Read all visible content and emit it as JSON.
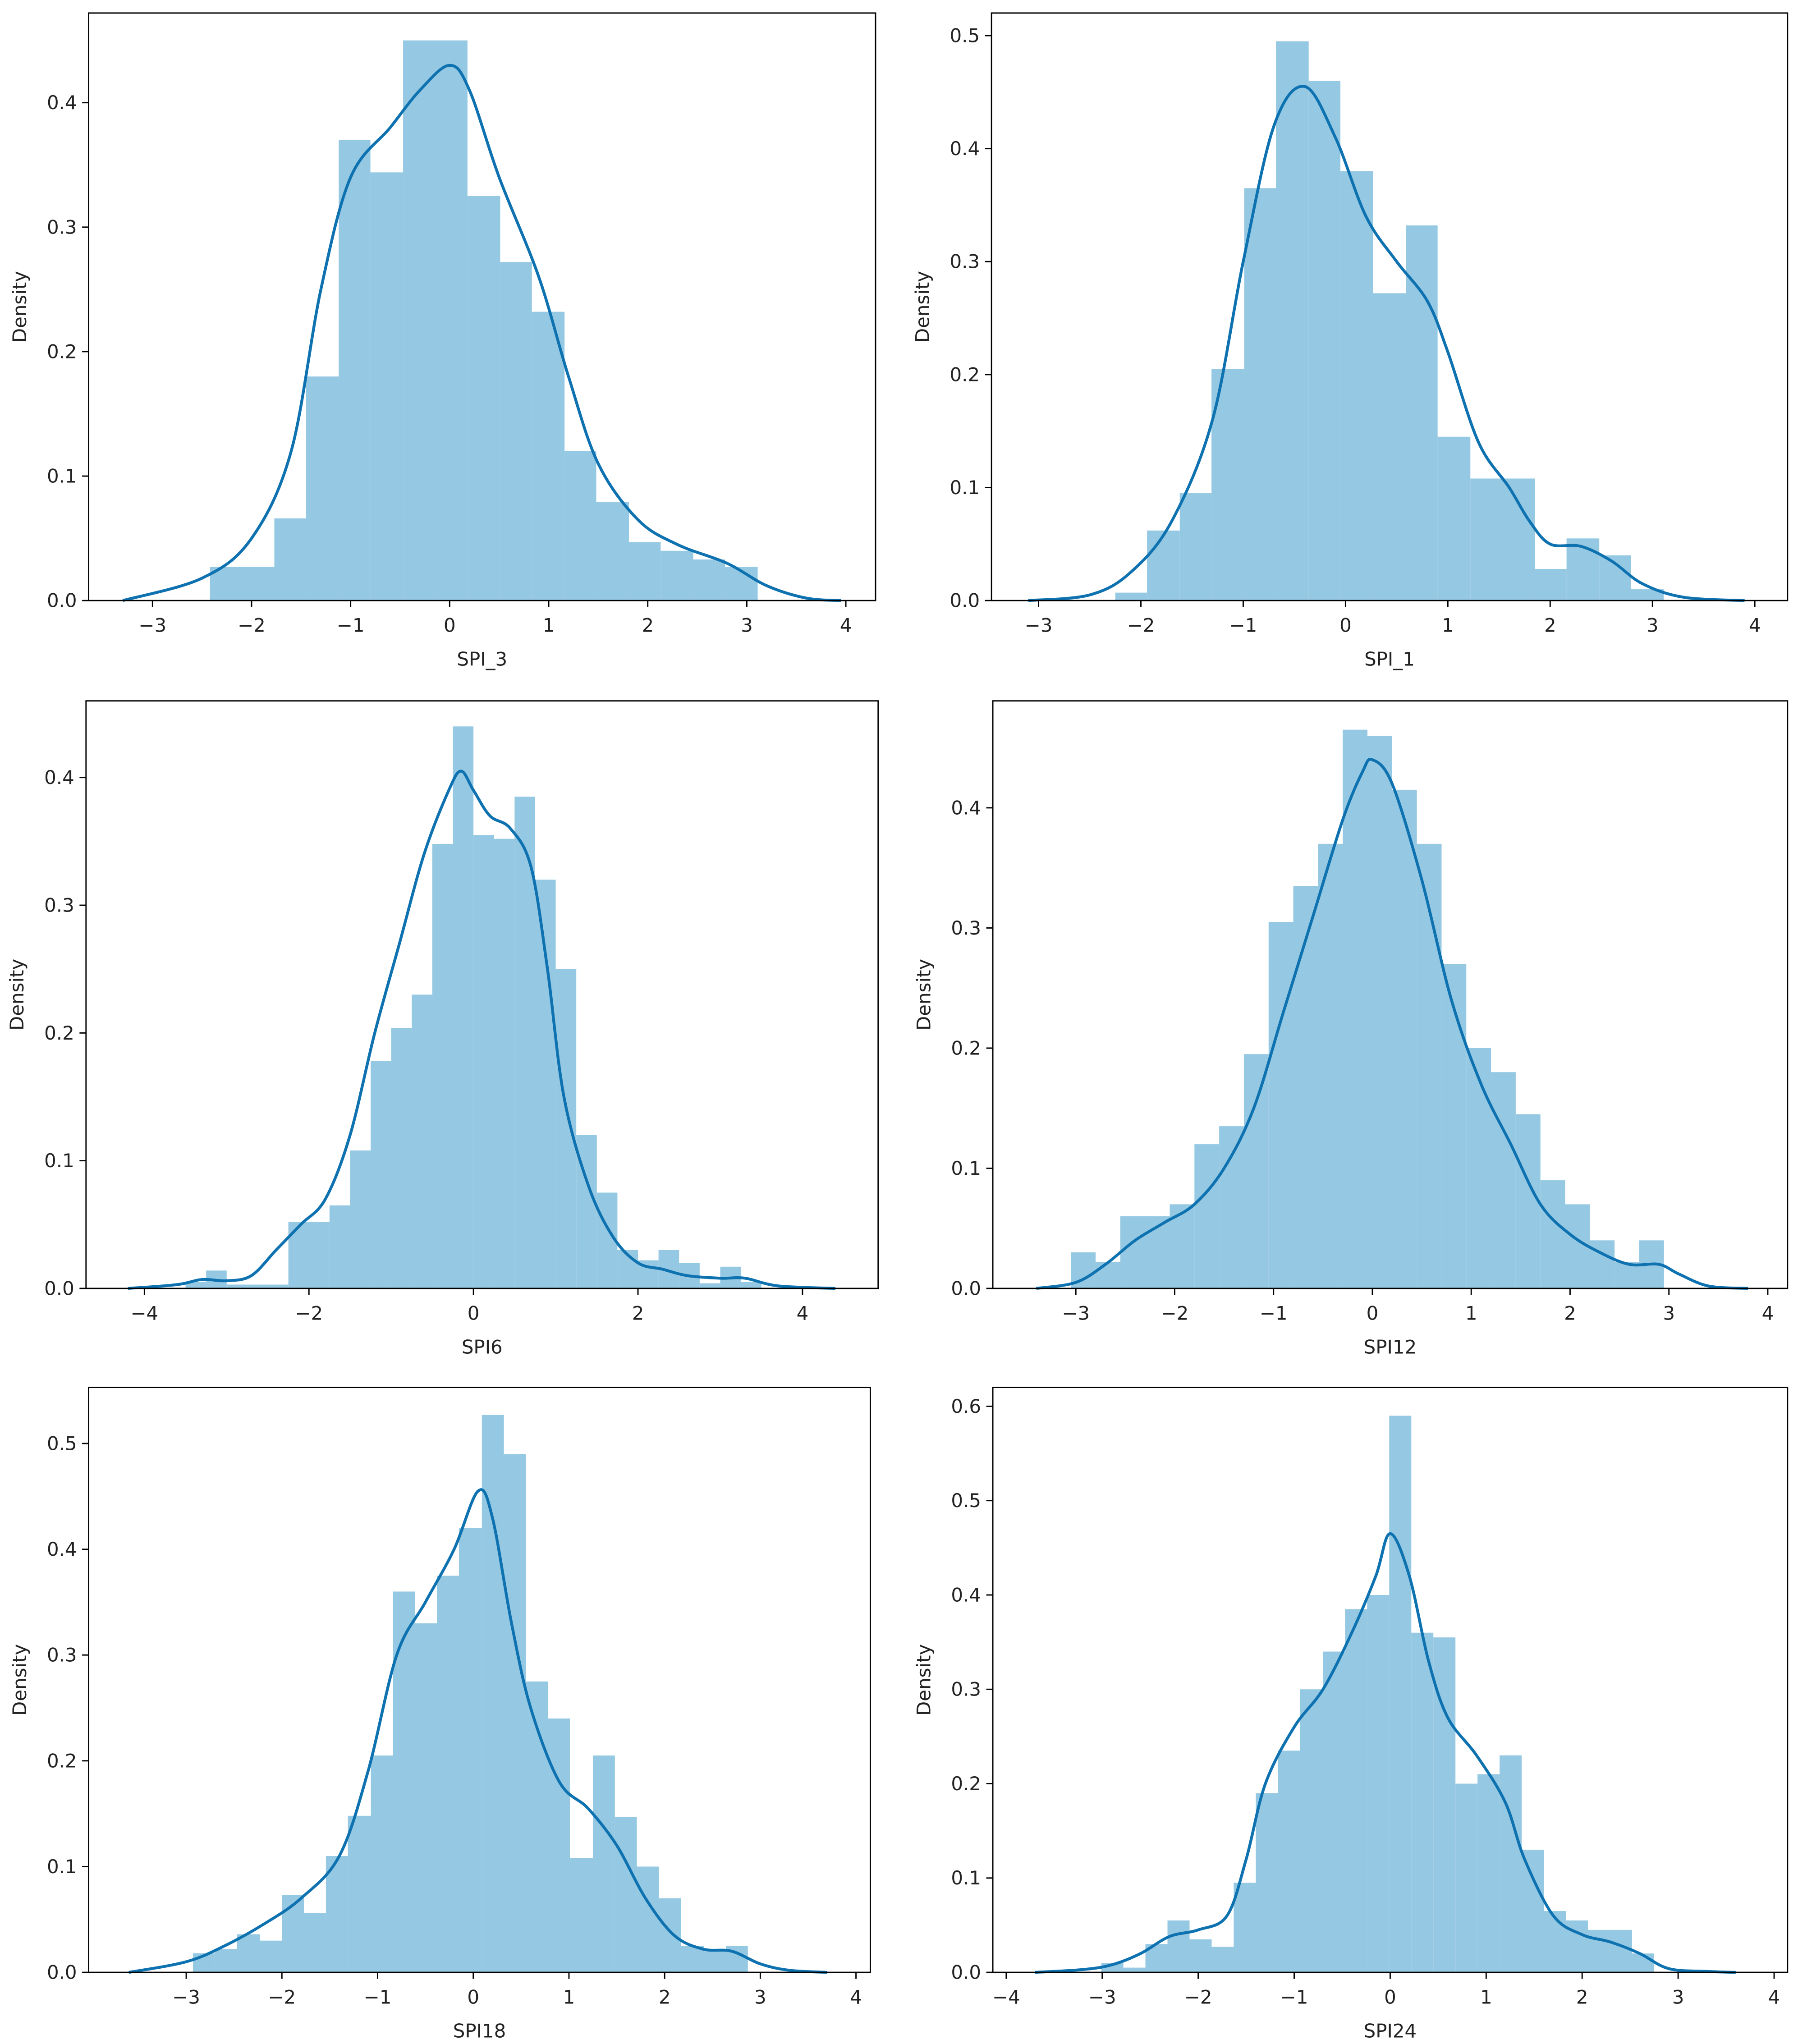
{
  "chart_data": [
    {
      "type": "histogram",
      "xlabel": "SPI_3",
      "ylabel": "Density",
      "color": "#95c8e2",
      "bins": [
        -2.42,
        -2.1,
        -1.77,
        -1.45,
        -1.12,
        -0.8,
        -0.47,
        -0.15,
        0.18,
        0.51,
        0.83,
        1.16,
        1.48,
        1.81,
        2.13,
        2.46,
        2.78,
        3.11
      ],
      "counts": [
        0.027,
        0.027,
        0.066,
        0.18,
        0.37,
        0.344,
        0.45,
        0.45,
        0.325,
        0.272,
        0.232,
        0.12,
        0.079,
        0.047,
        0.04,
        0.033,
        0.027
      ],
      "kde": {
        "color": "#0e72b0",
        "x": [
          -3.3,
          -2.5,
          -2,
          -1.6,
          -1.3,
          -1,
          -0.6,
          -0.3,
          0,
          0.2,
          0.5,
          0.9,
          1.2,
          1.5,
          1.9,
          2.3,
          2.8,
          3.2,
          3.6,
          3.95
        ],
        "values": [
          0,
          0.018,
          0.05,
          0.12,
          0.25,
          0.34,
          0.38,
          0.41,
          0.43,
          0.41,
          0.34,
          0.26,
          0.18,
          0.11,
          0.065,
          0.045,
          0.03,
          0.012,
          0.002,
          0
        ]
      },
      "xlim": [
        -3.645,
        4.3
      ],
      "ylim": [
        0,
        0.472
      ],
      "xticks": [
        {
          "value": -3,
          "label": "−3"
        },
        {
          "value": -2,
          "label": "−2"
        },
        {
          "value": -1,
          "label": "−1"
        },
        0,
        1,
        2,
        3,
        4
      ],
      "yticks": [
        {
          "value": 0,
          "label": "0.0"
        },
        0.1,
        0.2,
        0.3,
        0.4
      ]
    },
    {
      "type": "histogram",
      "xlabel": "SPI_1",
      "ylabel": "Density",
      "color": "#95c8e2",
      "bins": [
        -2.25,
        -1.94,
        -1.62,
        -1.31,
        -0.99,
        -0.68,
        -0.36,
        -0.05,
        0.27,
        0.59,
        0.9,
        1.22,
        1.53,
        1.85,
        2.16,
        2.48,
        2.79,
        3.11
      ],
      "counts": [
        0.007,
        0.062,
        0.095,
        0.205,
        0.365,
        0.495,
        0.46,
        0.38,
        0.272,
        0.332,
        0.145,
        0.108,
        0.108,
        0.028,
        0.055,
        0.04,
        0.01
      ],
      "kde": {
        "color": "#0e72b0",
        "x": [
          -3.1,
          -2.5,
          -2.1,
          -1.7,
          -1.3,
          -1,
          -0.7,
          -0.4,
          -0.1,
          0.2,
          0.5,
          0.8,
          1,
          1.3,
          1.6,
          1.8,
          2,
          2.3,
          2.6,
          2.9,
          3.3,
          3.9
        ],
        "values": [
          0,
          0.005,
          0.025,
          0.07,
          0.16,
          0.3,
          0.42,
          0.455,
          0.41,
          0.34,
          0.3,
          0.265,
          0.22,
          0.14,
          0.1,
          0.07,
          0.05,
          0.048,
          0.035,
          0.015,
          0.003,
          0
        ]
      },
      "xlim": [
        -3.46,
        4.32
      ],
      "ylim": [
        0,
        0.52
      ],
      "xticks": [
        {
          "value": -3,
          "label": "−3"
        },
        {
          "value": -2,
          "label": "−2"
        },
        {
          "value": -1,
          "label": "−1"
        },
        0,
        1,
        2,
        3,
        4
      ],
      "yticks": [
        {
          "value": 0,
          "label": "0.0"
        },
        0.1,
        0.2,
        0.3,
        0.4,
        0.5
      ]
    },
    {
      "type": "histogram",
      "xlabel": "SPI6",
      "ylabel": "Density",
      "color": "#95c8e2",
      "bins": [
        -3.5,
        -3.25,
        -3,
        -2.75,
        -2.5,
        -2.25,
        -2,
        -1.75,
        -1.5,
        -1.25,
        -1,
        -0.75,
        -0.5,
        -0.25,
        0,
        0.25,
        0.5,
        0.75,
        1,
        1.25,
        1.5,
        1.75,
        2,
        2.25,
        2.5,
        2.75,
        3,
        3.25,
        3.5
      ],
      "counts": [
        0.005,
        0.014,
        0.003,
        0.003,
        0.003,
        0.052,
        0.052,
        0.065,
        0.108,
        0.178,
        0.204,
        0.23,
        0.348,
        0.44,
        0.355,
        0.352,
        0.385,
        0.32,
        0.25,
        0.12,
        0.075,
        0.03,
        0.022,
        0.03,
        0.02,
        0.004,
        0.017,
        0.005
      ],
      "kde": {
        "color": "#0e72b0",
        "x": [
          -4.2,
          -3.6,
          -3.3,
          -3,
          -2.7,
          -2.4,
          -2.1,
          -1.8,
          -1.5,
          -1.2,
          -0.9,
          -0.6,
          -0.3,
          -0.15,
          0,
          0.2,
          0.45,
          0.7,
          0.9,
          1.1,
          1.4,
          1.7,
          2,
          2.3,
          2.6,
          3,
          3.3,
          3.7,
          4.4
        ],
        "values": [
          0,
          0.003,
          0.007,
          0.006,
          0.01,
          0.03,
          0.05,
          0.07,
          0.12,
          0.2,
          0.27,
          0.34,
          0.39,
          0.405,
          0.39,
          0.37,
          0.36,
          0.33,
          0.25,
          0.15,
          0.08,
          0.04,
          0.02,
          0.015,
          0.01,
          0.008,
          0.008,
          0.002,
          0
        ]
      },
      "xlim": [
        -4.71,
        4.92
      ],
      "ylim": [
        0,
        0.46
      ],
      "xticks": [
        {
          "value": -4,
          "label": "−4"
        },
        {
          "value": -2,
          "label": "−2"
        },
        0,
        2,
        4
      ],
      "yticks": [
        {
          "value": 0,
          "label": "0.0"
        },
        0.1,
        0.2,
        0.3,
        0.4
      ]
    },
    {
      "type": "histogram",
      "xlabel": "SPI12",
      "ylabel": "Density",
      "color": "#95c8e2",
      "bins": [
        -3.05,
        -2.8,
        -2.55,
        -2.3,
        -2.05,
        -1.8,
        -1.55,
        -1.3,
        -1.05,
        -0.8,
        -0.55,
        -0.3,
        -0.05,
        0.2,
        0.45,
        0.7,
        0.95,
        1.2,
        1.45,
        1.7,
        1.95,
        2.2,
        2.45,
        2.7,
        2.95
      ],
      "counts": [
        0.03,
        0.022,
        0.06,
        0.06,
        0.07,
        0.12,
        0.135,
        0.195,
        0.305,
        0.335,
        0.37,
        0.465,
        0.46,
        0.415,
        0.37,
        0.27,
        0.2,
        0.18,
        0.145,
        0.09,
        0.07,
        0.04,
        0.022,
        0.04
      ],
      "kde": {
        "color": "#0e72b0",
        "x": [
          -3.4,
          -3,
          -2.7,
          -2.4,
          -2.1,
          -1.8,
          -1.5,
          -1.2,
          -0.9,
          -0.6,
          -0.3,
          -0.1,
          0,
          0.2,
          0.5,
          0.8,
          1.1,
          1.4,
          1.7,
          2,
          2.3,
          2.6,
          2.9,
          3.1,
          3.4,
          3.8
        ],
        "values": [
          0,
          0.005,
          0.02,
          0.04,
          0.055,
          0.07,
          0.1,
          0.15,
          0.23,
          0.31,
          0.39,
          0.43,
          0.44,
          0.42,
          0.34,
          0.24,
          0.17,
          0.12,
          0.07,
          0.045,
          0.03,
          0.02,
          0.02,
          0.012,
          0.002,
          0
        ]
      },
      "xlim": [
        -3.84,
        4.2
      ],
      "ylim": [
        0,
        0.489
      ],
      "xticks": [
        {
          "value": -3,
          "label": "−3"
        },
        {
          "value": -2,
          "label": "−2"
        },
        {
          "value": -1,
          "label": "−1"
        },
        0,
        1,
        2,
        3,
        4
      ],
      "yticks": [
        {
          "value": 0,
          "label": "0.0"
        },
        0.1,
        0.2,
        0.3,
        0.4
      ]
    },
    {
      "type": "histogram",
      "xlabel": "SPI18",
      "ylabel": "Density",
      "color": "#95c8e2",
      "bins": [
        -2.93,
        -2.7,
        -2.47,
        -2.23,
        -2,
        -1.77,
        -1.54,
        -1.31,
        -1.07,
        -0.84,
        -0.61,
        -0.38,
        -0.15,
        0.09,
        0.32,
        0.55,
        0.78,
        1.01,
        1.25,
        1.48,
        1.71,
        1.94,
        2.17,
        2.41,
        2.64,
        2.87
      ],
      "counts": [
        0.018,
        0.022,
        0.036,
        0.03,
        0.073,
        0.056,
        0.11,
        0.148,
        0.205,
        0.36,
        0.33,
        0.375,
        0.42,
        0.527,
        0.49,
        0.275,
        0.24,
        0.108,
        0.205,
        0.147,
        0.1,
        0.07,
        0.025,
        0.02,
        0.025
      ],
      "kde": {
        "color": "#0e72b0",
        "x": [
          -3.6,
          -3,
          -2.6,
          -2.2,
          -1.8,
          -1.4,
          -1.1,
          -0.8,
          -0.5,
          -0.2,
          0.05,
          0.2,
          0.4,
          0.6,
          0.9,
          1.2,
          1.5,
          1.8,
          2.1,
          2.4,
          2.7,
          3,
          3.3,
          3.7
        ],
        "values": [
          0,
          0.01,
          0.025,
          0.045,
          0.07,
          0.11,
          0.19,
          0.3,
          0.35,
          0.4,
          0.455,
          0.43,
          0.33,
          0.25,
          0.18,
          0.155,
          0.12,
          0.07,
          0.035,
          0.022,
          0.02,
          0.008,
          0.002,
          0
        ]
      },
      "xlim": [
        -4.02,
        4.15
      ],
      "ylim": [
        0,
        0.553
      ],
      "xticks": [
        {
          "value": -3,
          "label": "−3"
        },
        {
          "value": -2,
          "label": "−2"
        },
        {
          "value": -1,
          "label": "−1"
        },
        0,
        1,
        2,
        3,
        4
      ],
      "yticks": [
        {
          "value": 0,
          "label": "0.0"
        },
        0.1,
        0.2,
        0.3,
        0.4,
        0.5
      ]
    },
    {
      "type": "histogram",
      "xlabel": "SPI24",
      "ylabel": "Density",
      "color": "#95c8e2",
      "bins": [
        -3.01,
        -2.78,
        -2.55,
        -2.32,
        -2.09,
        -1.86,
        -1.63,
        -1.4,
        -1.17,
        -0.94,
        -0.7,
        -0.47,
        -0.24,
        -0.01,
        0.22,
        0.45,
        0.68,
        0.91,
        1.14,
        1.37,
        1.6,
        1.83,
        2.06,
        2.29,
        2.52,
        2.75
      ],
      "counts": [
        0.01,
        0.005,
        0.03,
        0.055,
        0.035,
        0.027,
        0.095,
        0.19,
        0.235,
        0.3,
        0.34,
        0.385,
        0.4,
        0.59,
        0.36,
        0.355,
        0.2,
        0.21,
        0.23,
        0.13,
        0.065,
        0.055,
        0.045,
        0.045,
        0.02
      ],
      "kde": {
        "color": "#0e72b0",
        "x": [
          -3.7,
          -3.2,
          -2.9,
          -2.6,
          -2.3,
          -2,
          -1.7,
          -1.5,
          -1.3,
          -1,
          -0.7,
          -0.4,
          -0.15,
          0,
          0.2,
          0.4,
          0.6,
          0.9,
          1.2,
          1.4,
          1.7,
          2,
          2.3,
          2.6,
          2.9,
          3.3,
          3.6
        ],
        "values": [
          0,
          0.003,
          0.008,
          0.02,
          0.038,
          0.045,
          0.06,
          0.12,
          0.2,
          0.26,
          0.3,
          0.36,
          0.42,
          0.465,
          0.42,
          0.33,
          0.27,
          0.23,
          0.18,
          0.12,
          0.06,
          0.04,
          0.032,
          0.02,
          0.004,
          0.001,
          0
        ]
      },
      "xlim": [
        -4.14,
        4.14
      ],
      "ylim": [
        0,
        0.62
      ],
      "xticks": [
        {
          "value": -4,
          "label": "−4"
        },
        {
          "value": -3,
          "label": "−3"
        },
        {
          "value": -2,
          "label": "−2"
        },
        {
          "value": -1,
          "label": "−1"
        },
        0,
        1,
        2,
        3,
        4
      ],
      "yticks": [
        {
          "value": 0,
          "label": "0.0"
        },
        0.1,
        0.2,
        0.3,
        0.4,
        0.5,
        0.6
      ]
    }
  ]
}
